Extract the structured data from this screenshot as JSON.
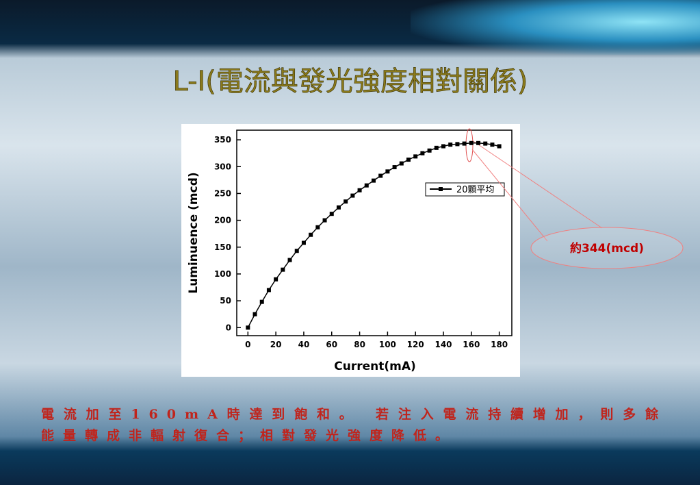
{
  "slide_title": "L-I(電流與發光強度相對關係)",
  "callout": "約344(mcd)",
  "body": "電流加至160mA時達到飽和。 若注入電流持續增加，則多餘能量轉成非輻射復合；相對發光強度降低。",
  "chart_data": {
    "type": "line",
    "x_label": "Current(mA)",
    "y_label": "Luminuence (mcd)",
    "x": [
      0,
      5,
      10,
      15,
      20,
      25,
      30,
      35,
      40,
      45,
      50,
      55,
      60,
      65,
      70,
      75,
      80,
      85,
      90,
      95,
      100,
      105,
      110,
      115,
      120,
      125,
      130,
      135,
      140,
      145,
      150,
      155,
      160,
      165,
      170,
      175,
      180
    ],
    "series": [
      {
        "name": "20顆平均",
        "color": "#000000",
        "values": [
          0,
          25,
          48,
          70,
          90,
          108,
          126,
          143,
          158,
          173,
          187,
          200,
          212,
          224,
          235,
          246,
          256,
          265,
          274,
          283,
          291,
          299,
          306,
          313,
          319,
          325,
          330,
          335,
          338,
          341,
          342,
          343,
          344,
          344,
          343,
          341,
          338
        ]
      }
    ],
    "xlim": [
      -8,
      189
    ],
    "ylim": [
      -15,
      368
    ],
    "xticks": [
      0,
      20,
      40,
      60,
      80,
      100,
      120,
      140,
      160,
      180
    ],
    "yticks": [
      0,
      50,
      100,
      150,
      200,
      250,
      300,
      350
    ],
    "legend": "upper-right"
  }
}
